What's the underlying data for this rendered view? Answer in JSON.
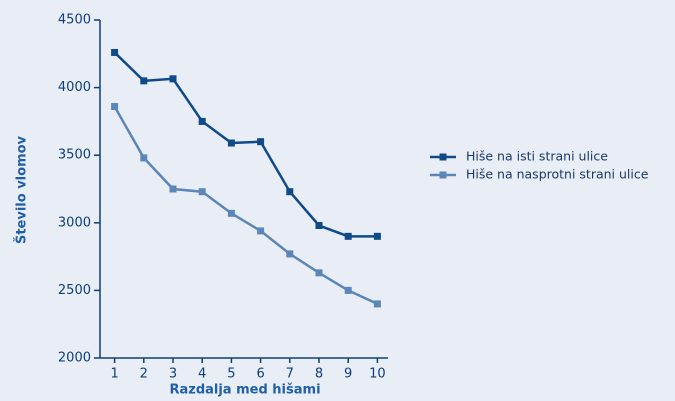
{
  "chart_data": {
    "type": "line",
    "x_label": "Razdalja med hišami",
    "y_label": "Število vlomov",
    "x": [
      1,
      2,
      3,
      4,
      5,
      6,
      7,
      8,
      9,
      10
    ],
    "series": [
      {
        "name": "Hiše na isti strani ulice",
        "color": "#0d4a87",
        "values": [
          4260,
          4050,
          4065,
          3750,
          3590,
          3600,
          3230,
          2980,
          2900,
          2900
        ]
      },
      {
        "name": "Hiše na nasprotni strani ulice",
        "color": "#5b86b8",
        "values": [
          3860,
          3480,
          3250,
          3230,
          3070,
          2940,
          2770,
          2630,
          2500,
          2400
        ]
      }
    ],
    "xlim": [
      0.5,
      10.5
    ],
    "xticks": [
      1,
      2,
      3,
      4,
      5,
      6,
      7,
      8,
      9,
      10
    ],
    "ylim": [
      2000,
      4500
    ],
    "yticks": [
      2000,
      2500,
      3000,
      3500,
      4000,
      4500
    ],
    "grid": false,
    "legend": "right"
  }
}
